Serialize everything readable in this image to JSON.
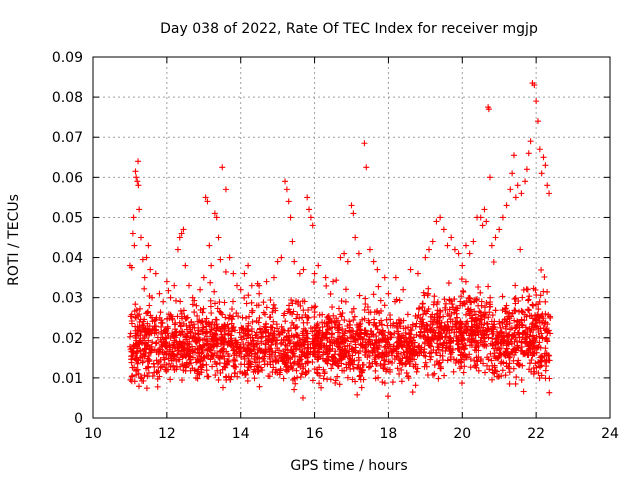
{
  "chart_data": {
    "type": "scatter",
    "title": "Day 038 of 2022, Rate Of TEC Index for receiver mgjp",
    "xlabel": "GPS time / hours",
    "ylabel": "ROTI / TECUs",
    "xlim": [
      10,
      24
    ],
    "ylim": [
      0,
      0.09
    ],
    "x_ticks": [
      "10",
      "12",
      "14",
      "16",
      "18",
      "20",
      "22",
      "24"
    ],
    "y_ticks": [
      "0",
      "0.01",
      "0.02",
      "0.03",
      "0.04",
      "0.05",
      "0.06",
      "0.07",
      "0.08",
      "0.09"
    ],
    "grid": true,
    "marker": "+",
    "marker_color": "#ff0000",
    "series": [
      {
        "points": [
          [
            11.0,
            0.038
          ],
          [
            11.05,
            0.0375
          ],
          [
            11.08,
            0.046
          ],
          [
            11.1,
            0.05
          ],
          [
            11.12,
            0.043
          ],
          [
            11.15,
            0.0615
          ],
          [
            11.17,
            0.06
          ],
          [
            11.2,
            0.059
          ],
          [
            11.22,
            0.064
          ],
          [
            11.23,
            0.058
          ],
          [
            11.25,
            0.052
          ],
          [
            11.3,
            0.045
          ],
          [
            11.35,
            0.0395
          ],
          [
            11.4,
            0.035
          ],
          [
            11.45,
            0.04
          ],
          [
            11.5,
            0.043
          ],
          [
            11.55,
            0.037
          ],
          [
            11.6,
            0.03
          ],
          [
            11.7,
            0.036
          ],
          [
            11.8,
            0.031
          ],
          [
            11.9,
            0.029
          ],
          [
            12.0,
            0.034
          ],
          [
            12.1,
            0.03
          ],
          [
            12.2,
            0.033
          ],
          [
            12.3,
            0.042
          ],
          [
            12.35,
            0.045
          ],
          [
            12.4,
            0.046
          ],
          [
            12.45,
            0.047
          ],
          [
            12.5,
            0.038
          ],
          [
            12.6,
            0.033
          ],
          [
            12.7,
            0.03
          ],
          [
            12.8,
            0.028
          ],
          [
            12.9,
            0.032
          ],
          [
            13.0,
            0.035
          ],
          [
            13.05,
            0.055
          ],
          [
            13.1,
            0.054
          ],
          [
            13.15,
            0.043
          ],
          [
            13.2,
            0.038
          ],
          [
            13.3,
            0.051
          ],
          [
            13.35,
            0.05
          ],
          [
            13.4,
            0.045
          ],
          [
            13.45,
            0.0395
          ],
          [
            13.5,
            0.0625
          ],
          [
            13.6,
            0.057
          ],
          [
            13.7,
            0.04
          ],
          [
            13.8,
            0.036
          ],
          [
            13.9,
            0.033
          ],
          [
            14.0,
            0.032
          ],
          [
            14.1,
            0.036
          ],
          [
            14.2,
            0.038
          ],
          [
            14.3,
            0.033
          ],
          [
            14.5,
            0.031
          ],
          [
            14.7,
            0.034
          ],
          [
            14.9,
            0.035
          ],
          [
            15.0,
            0.039
          ],
          [
            15.1,
            0.04
          ],
          [
            15.2,
            0.059
          ],
          [
            15.25,
            0.057
          ],
          [
            15.3,
            0.054
          ],
          [
            15.35,
            0.05
          ],
          [
            15.4,
            0.044
          ],
          [
            15.45,
            0.039
          ],
          [
            15.6,
            0.036
          ],
          [
            15.7,
            0.037
          ],
          [
            15.8,
            0.055
          ],
          [
            15.85,
            0.052
          ],
          [
            15.9,
            0.05
          ],
          [
            15.95,
            0.048
          ],
          [
            16.0,
            0.036
          ],
          [
            16.1,
            0.038
          ],
          [
            16.3,
            0.035
          ],
          [
            16.5,
            0.034
          ],
          [
            16.7,
            0.04
          ],
          [
            16.8,
            0.041
          ],
          [
            16.9,
            0.039
          ],
          [
            17.0,
            0.053
          ],
          [
            17.05,
            0.051
          ],
          [
            17.1,
            0.045
          ],
          [
            17.2,
            0.041
          ],
          [
            17.35,
            0.0685
          ],
          [
            17.4,
            0.0625
          ],
          [
            17.5,
            0.042
          ],
          [
            17.6,
            0.039
          ],
          [
            17.7,
            0.037
          ],
          [
            17.9,
            0.035
          ],
          [
            18.0,
            0.031
          ],
          [
            18.2,
            0.035
          ],
          [
            18.4,
            0.032
          ],
          [
            18.6,
            0.037
          ],
          [
            18.8,
            0.036
          ],
          [
            19.0,
            0.04
          ],
          [
            19.1,
            0.042
          ],
          [
            19.2,
            0.044
          ],
          [
            19.3,
            0.049
          ],
          [
            19.4,
            0.05
          ],
          [
            19.5,
            0.047
          ],
          [
            19.6,
            0.043
          ],
          [
            19.7,
            0.045
          ],
          [
            19.8,
            0.042
          ],
          [
            19.9,
            0.041
          ],
          [
            20.0,
            0.038
          ],
          [
            20.1,
            0.043
          ],
          [
            20.2,
            0.041
          ],
          [
            20.3,
            0.044
          ],
          [
            20.4,
            0.05
          ],
          [
            20.5,
            0.05
          ],
          [
            20.55,
            0.048
          ],
          [
            20.6,
            0.052
          ],
          [
            20.65,
            0.049
          ],
          [
            20.7,
            0.0775
          ],
          [
            20.72,
            0.077
          ],
          [
            20.75,
            0.06
          ],
          [
            20.8,
            0.043
          ],
          [
            20.9,
            0.045
          ],
          [
            21.0,
            0.047
          ],
          [
            21.1,
            0.05
          ],
          [
            21.2,
            0.053
          ],
          [
            21.3,
            0.057
          ],
          [
            21.35,
            0.061
          ],
          [
            21.4,
            0.0655
          ],
          [
            21.45,
            0.055
          ],
          [
            21.5,
            0.058
          ],
          [
            21.6,
            0.056
          ],
          [
            21.7,
            0.059
          ],
          [
            21.75,
            0.062
          ],
          [
            21.8,
            0.066
          ],
          [
            21.85,
            0.069
          ],
          [
            21.9,
            0.0835
          ],
          [
            21.95,
            0.083
          ],
          [
            22.0,
            0.079
          ],
          [
            22.05,
            0.074
          ],
          [
            22.1,
            0.067
          ],
          [
            22.15,
            0.061
          ],
          [
            22.2,
            0.065
          ],
          [
            22.25,
            0.063
          ],
          [
            22.3,
            0.058
          ],
          [
            22.35,
            0.056
          ]
        ]
      }
    ]
  }
}
